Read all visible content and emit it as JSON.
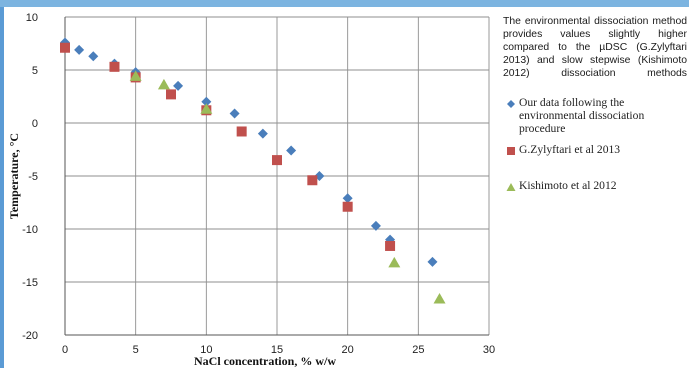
{
  "note": "The environmental dissociation method provides values slightly higher compared to the µDSC (G.Zylyftari 2013) and slow stepwise (Kishimoto 2012) dissociation methods",
  "chart_data": {
    "type": "scatter",
    "title": "",
    "xlabel": "NaCl concentration, % w/w",
    "ylabel": "Temperature, °C",
    "xlim": [
      0,
      30
    ],
    "ylim": [
      -20,
      10
    ],
    "xticks": [
      0,
      5,
      10,
      15,
      20,
      25,
      30
    ],
    "yticks": [
      10,
      5,
      0,
      -5,
      -10,
      -15,
      -20
    ],
    "grid": true,
    "legend_position": "right",
    "series": [
      {
        "name": "Our data following the environmental dissociation procedure",
        "marker": "diamond",
        "color": "#4a7ebb",
        "x": [
          0,
          1,
          2,
          3.5,
          5,
          8,
          10,
          12,
          14,
          16,
          18,
          20,
          22,
          23,
          26
        ],
        "y": [
          7.6,
          6.9,
          6.3,
          5.6,
          4.8,
          3.5,
          2.0,
          0.9,
          -1.0,
          -2.6,
          -5.0,
          -7.1,
          -9.7,
          -11.0,
          -13.1
        ]
      },
      {
        "name": "G.Zylyftari et al 2013",
        "marker": "square",
        "color": "#c0504d",
        "x": [
          0,
          3.5,
          5,
          7.5,
          10,
          12.5,
          15,
          17.5,
          20,
          23
        ],
        "y": [
          7.1,
          5.3,
          4.3,
          2.7,
          1.2,
          -0.8,
          -3.5,
          -5.4,
          -7.9,
          -11.6
        ]
      },
      {
        "name": "Kishimoto et al 2012",
        "marker": "triangle",
        "color": "#9bbb59",
        "x": [
          5,
          7,
          10,
          23.3,
          26.5
        ],
        "y": [
          4.4,
          3.6,
          1.3,
          -13.2,
          -16.6
        ]
      }
    ]
  }
}
